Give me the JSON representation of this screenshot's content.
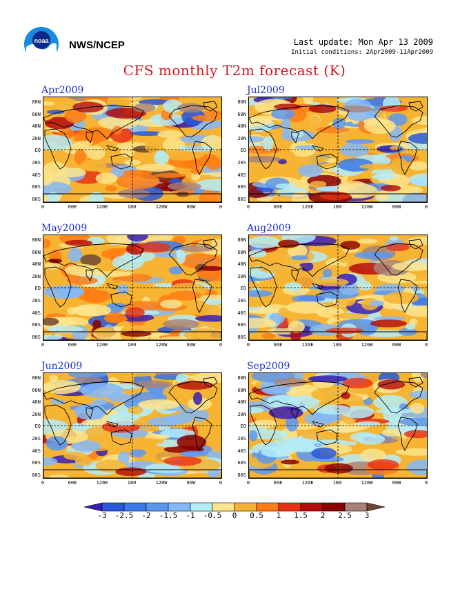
{
  "header": {
    "agency": "NWS/NCEP",
    "last_update": "Last update: Mon Apr 13 2009",
    "initial_conditions": "Initial conditions: 2Apr2009-11Apr2009",
    "title": "CFS monthly T2m forecast (K)"
  },
  "panels": [
    {
      "title": "Apr2009"
    },
    {
      "title": "Jul2009"
    },
    {
      "title": "May2009"
    },
    {
      "title": "Aug2009"
    },
    {
      "title": "Jun2009"
    },
    {
      "title": "Sep2009"
    }
  ],
  "lat_labels": [
    "80N",
    "60N",
    "40N",
    "20N",
    "EQ",
    "20S",
    "40S",
    "60S",
    "80S"
  ],
  "lon_labels": [
    "0",
    "60E",
    "120E",
    "180",
    "120W",
    "60W",
    "0"
  ],
  "colorbar": {
    "labels": [
      "-3",
      "-2.5",
      "-2",
      "-1.5",
      "-1",
      "-0.5",
      "0",
      "0.5",
      "1",
      "1.5",
      "2",
      "2.5",
      "3"
    ],
    "colors": [
      "#3a1fb0",
      "#2858d8",
      "#3c78e8",
      "#5a98f0",
      "#84b8f8",
      "#b4ecf8",
      "#fde48c",
      "#f6b432",
      "#ff7d14",
      "#e83214",
      "#b40a0a",
      "#8a0000",
      "#a8827a",
      "#6e4632"
    ]
  },
  "logo": {
    "text": "noaa"
  }
}
